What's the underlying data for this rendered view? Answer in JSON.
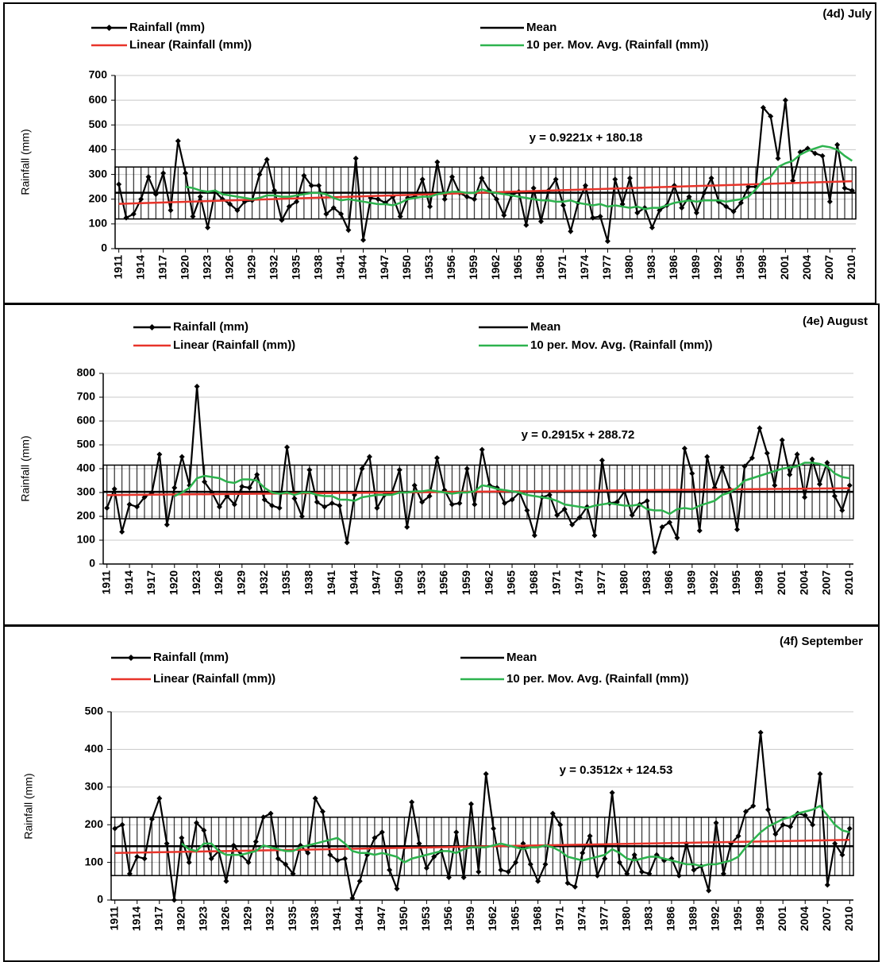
{
  "chart_data": [
    {
      "type": "line",
      "title": "(4d) July",
      "ylabel": "Rainfall (mm)",
      "annotation": "y = 0.9221x + 180.18",
      "x": [
        1911,
        1912,
        1913,
        1914,
        1915,
        1916,
        1917,
        1918,
        1919,
        1920,
        1921,
        1922,
        1923,
        1924,
        1925,
        1926,
        1927,
        1928,
        1929,
        1930,
        1931,
        1932,
        1933,
        1934,
        1935,
        1936,
        1937,
        1938,
        1939,
        1940,
        1941,
        1942,
        1943,
        1944,
        1945,
        1946,
        1947,
        1948,
        1949,
        1950,
        1951,
        1952,
        1953,
        1954,
        1955,
        1956,
        1957,
        1958,
        1959,
        1960,
        1961,
        1962,
        1963,
        1964,
        1965,
        1966,
        1967,
        1968,
        1969,
        1970,
        1971,
        1972,
        1973,
        1974,
        1975,
        1976,
        1977,
        1978,
        1979,
        1980,
        1981,
        1982,
        1983,
        1984,
        1985,
        1986,
        1987,
        1988,
        1989,
        1990,
        1991,
        1992,
        1993,
        1994,
        1995,
        1996,
        1997,
        1998,
        1999,
        2000,
        2001,
        2002,
        2003,
        2004,
        2005,
        2006,
        2007,
        2008,
        2009,
        2010
      ],
      "xlim": [
        1910.5,
        2010.5
      ],
      "xticks": [
        1911,
        1914,
        1917,
        1920,
        1923,
        1926,
        1929,
        1932,
        1935,
        1938,
        1941,
        1944,
        1947,
        1950,
        1953,
        1956,
        1959,
        1962,
        1965,
        1968,
        1971,
        1974,
        1977,
        1980,
        1983,
        1986,
        1989,
        1992,
        1995,
        1998,
        2001,
        2004,
        2007,
        2010
      ],
      "ylim": [
        0,
        700
      ],
      "yticks": [
        0,
        100,
        200,
        300,
        400,
        500,
        600,
        700
      ],
      "grid": true,
      "shaded_range": [
        120,
        330
      ],
      "series": [
        {
          "name": "Rainfall (mm)",
          "color": "#000000",
          "marker": "diamond",
          "values": [
            260,
            125,
            140,
            200,
            290,
            220,
            305,
            155,
            435,
            305,
            130,
            210,
            85,
            230,
            200,
            180,
            155,
            190,
            195,
            300,
            360,
            235,
            115,
            170,
            190,
            295,
            255,
            255,
            140,
            165,
            140,
            75,
            365,
            35,
            205,
            200,
            185,
            210,
            130,
            205,
            210,
            280,
            170,
            350,
            200,
            290,
            225,
            210,
            200,
            285,
            235,
            200,
            135,
            215,
            230,
            95,
            245,
            110,
            235,
            280,
            175,
            70,
            185,
            255,
            125,
            130,
            30,
            280,
            180,
            285,
            145,
            165,
            85,
            155,
            175,
            255,
            165,
            210,
            145,
            225,
            285,
            190,
            170,
            150,
            185,
            250,
            250,
            570,
            535,
            365,
            600,
            275,
            390,
            405,
            385,
            375,
            190,
            420,
            245,
            235
          ]
        },
        {
          "name": "Mean",
          "color": "#000000",
          "x": [
            1910.5,
            2010.5
          ],
          "values": [
            226,
            226
          ]
        },
        {
          "name": "Linear (Rainfall (mm))",
          "color": "#e8342a",
          "x": [
            1911,
            2010
          ],
          "values": [
            181.1,
            272.4
          ]
        },
        {
          "name": "10 per. Mov. Avg. (Rainfall (mm))",
          "color": "#2db34e",
          "values": [
            null,
            null,
            null,
            null,
            null,
            null,
            null,
            null,
            null,
            250,
            245,
            235,
            230,
            235,
            220,
            215,
            210,
            205,
            200,
            205,
            215,
            215,
            210,
            210,
            215,
            220,
            225,
            225,
            220,
            205,
            195,
            200,
            195,
            190,
            185,
            180,
            180,
            175,
            185,
            200,
            205,
            210,
            210,
            220,
            225,
            230,
            230,
            225,
            225,
            240,
            230,
            225,
            220,
            215,
            210,
            205,
            200,
            195,
            195,
            190,
            190,
            195,
            185,
            180,
            175,
            180,
            170,
            175,
            170,
            165,
            170,
            160,
            165,
            165,
            175,
            185,
            190,
            195,
            190,
            195,
            195,
            195,
            190,
            195,
            200,
            210,
            240,
            275,
            290,
            330,
            345,
            355,
            380,
            395,
            405,
            415,
            410,
            400,
            375,
            355
          ]
        }
      ]
    },
    {
      "type": "line",
      "title": "(4e) August",
      "ylabel": "Rainfall (mm)",
      "annotation": "y = 0.2915x + 288.72",
      "x": [
        1911,
        1912,
        1913,
        1914,
        1915,
        1916,
        1917,
        1918,
        1919,
        1920,
        1921,
        1922,
        1923,
        1924,
        1925,
        1926,
        1927,
        1928,
        1929,
        1930,
        1931,
        1932,
        1933,
        1934,
        1935,
        1936,
        1937,
        1938,
        1939,
        1940,
        1941,
        1942,
        1943,
        1944,
        1945,
        1946,
        1947,
        1948,
        1949,
        1950,
        1951,
        1952,
        1953,
        1954,
        1955,
        1956,
        1957,
        1958,
        1959,
        1960,
        1961,
        1962,
        1963,
        1964,
        1965,
        1966,
        1967,
        1968,
        1969,
        1970,
        1971,
        1972,
        1973,
        1974,
        1975,
        1976,
        1977,
        1978,
        1979,
        1980,
        1981,
        1982,
        1983,
        1984,
        1985,
        1986,
        1987,
        1988,
        1989,
        1990,
        1991,
        1992,
        1993,
        1994,
        1995,
        1996,
        1997,
        1998,
        1999,
        2000,
        2001,
        2002,
        2003,
        2004,
        2005,
        2006,
        2007,
        2008,
        2009,
        2010
      ],
      "xlim": [
        1910.5,
        2010.5
      ],
      "xticks": [
        1911,
        1914,
        1917,
        1920,
        1923,
        1926,
        1929,
        1932,
        1935,
        1938,
        1941,
        1944,
        1947,
        1950,
        1953,
        1956,
        1959,
        1962,
        1965,
        1968,
        1971,
        1974,
        1977,
        1980,
        1983,
        1986,
        1989,
        1992,
        1995,
        1998,
        2001,
        2004,
        2007,
        2010
      ],
      "ylim": [
        0,
        800
      ],
      "yticks": [
        0,
        100,
        200,
        300,
        400,
        500,
        600,
        700,
        800
      ],
      "grid": true,
      "shaded_range": [
        190,
        415
      ],
      "series": [
        {
          "name": "Rainfall (mm)",
          "color": "#000000",
          "marker": "diamond",
          "values": [
            235,
            315,
            135,
            250,
            240,
            280,
            300,
            460,
            165,
            320,
            450,
            330,
            745,
            345,
            300,
            240,
            285,
            250,
            325,
            320,
            375,
            270,
            245,
            235,
            490,
            275,
            200,
            395,
            260,
            240,
            255,
            245,
            90,
            290,
            400,
            450,
            235,
            290,
            300,
            395,
            155,
            330,
            260,
            285,
            445,
            310,
            250,
            255,
            400,
            250,
            480,
            330,
            320,
            255,
            270,
            300,
            225,
            120,
            280,
            290,
            205,
            230,
            165,
            195,
            240,
            120,
            435,
            255,
            260,
            305,
            205,
            250,
            265,
            50,
            155,
            175,
            110,
            485,
            380,
            140,
            450,
            320,
            405,
            315,
            145,
            410,
            445,
            570,
            465,
            330,
            520,
            375,
            460,
            280,
            440,
            335,
            425,
            285,
            225,
            330
          ]
        },
        {
          "name": "Mean",
          "color": "#000000",
          "x": [
            1910.5,
            2010.5
          ],
          "values": [
            303,
            303
          ]
        },
        {
          "name": "Linear (Rainfall (mm))",
          "color": "#e8342a",
          "x": [
            1911,
            2010
          ],
          "values": [
            289.0,
            317.9
          ]
        },
        {
          "name": "10 per. Mov. Avg. (Rainfall (mm))",
          "color": "#2db34e",
          "values": [
            null,
            null,
            null,
            null,
            null,
            null,
            null,
            null,
            null,
            285,
            300,
            320,
            360,
            370,
            365,
            360,
            345,
            340,
            355,
            355,
            350,
            320,
            300,
            295,
            300,
            290,
            300,
            300,
            290,
            285,
            285,
            270,
            270,
            265,
            280,
            285,
            290,
            290,
            290,
            300,
            300,
            305,
            305,
            310,
            305,
            300,
            295,
            300,
            300,
            305,
            330,
            325,
            315,
            310,
            305,
            300,
            290,
            285,
            280,
            275,
            265,
            250,
            245,
            240,
            235,
            245,
            250,
            255,
            250,
            245,
            245,
            250,
            230,
            225,
            225,
            210,
            230,
            235,
            230,
            245,
            255,
            265,
            290,
            300,
            320,
            350,
            360,
            370,
            380,
            390,
            400,
            405,
            410,
            425,
            425,
            420,
            410,
            380,
            365,
            360
          ]
        }
      ]
    },
    {
      "type": "line",
      "title": "(4f) September",
      "ylabel": "Rainfall (mm)",
      "annotation": "y = 0.3512x + 124.53",
      "x": [
        1911,
        1912,
        1913,
        1914,
        1915,
        1916,
        1917,
        1918,
        1919,
        1920,
        1921,
        1922,
        1923,
        1924,
        1925,
        1926,
        1927,
        1928,
        1929,
        1930,
        1931,
        1932,
        1933,
        1934,
        1935,
        1936,
        1937,
        1938,
        1939,
        1940,
        1941,
        1942,
        1943,
        1944,
        1945,
        1946,
        1947,
        1948,
        1949,
        1950,
        1951,
        1952,
        1953,
        1954,
        1955,
        1956,
        1957,
        1958,
        1959,
        1960,
        1961,
        1962,
        1963,
        1964,
        1965,
        1966,
        1967,
        1968,
        1969,
        1970,
        1971,
        1972,
        1973,
        1974,
        1975,
        1976,
        1977,
        1978,
        1979,
        1980,
        1981,
        1982,
        1983,
        1984,
        1985,
        1986,
        1987,
        1988,
        1989,
        1990,
        1991,
        1992,
        1993,
        1994,
        1995,
        1996,
        1997,
        1998,
        1999,
        2000,
        2001,
        2002,
        2003,
        2004,
        2005,
        2006,
        2007,
        2008,
        2009,
        2010
      ],
      "xlim": [
        1910.5,
        2010.5
      ],
      "xticks": [
        1911,
        1914,
        1917,
        1920,
        1923,
        1926,
        1929,
        1932,
        1935,
        1938,
        1941,
        1944,
        1947,
        1950,
        1953,
        1956,
        1959,
        1962,
        1965,
        1968,
        1971,
        1974,
        1977,
        1980,
        1983,
        1986,
        1989,
        1992,
        1995,
        1998,
        2001,
        2004,
        2007,
        2010
      ],
      "ylim": [
        0,
        500
      ],
      "yticks": [
        0,
        100,
        200,
        300,
        400,
        500
      ],
      "grid": true,
      "shaded_range": [
        65,
        220
      ],
      "series": [
        {
          "name": "Rainfall (mm)",
          "color": "#000000",
          "marker": "diamond",
          "values": [
            190,
            200,
            70,
            115,
            110,
            215,
            270,
            150,
            0,
            165,
            100,
            205,
            185,
            110,
            130,
            50,
            145,
            120,
            100,
            155,
            220,
            230,
            110,
            95,
            70,
            145,
            125,
            270,
            235,
            120,
            105,
            110,
            5,
            50,
            120,
            165,
            180,
            80,
            30,
            140,
            260,
            150,
            85,
            115,
            130,
            60,
            180,
            60,
            255,
            75,
            335,
            190,
            80,
            75,
            100,
            150,
            95,
            50,
            95,
            230,
            200,
            45,
            35,
            125,
            170,
            65,
            110,
            285,
            100,
            70,
            120,
            75,
            70,
            120,
            105,
            110,
            65,
            150,
            80,
            90,
            25,
            205,
            70,
            150,
            170,
            235,
            250,
            445,
            240,
            175,
            200,
            195,
            230,
            225,
            200,
            335,
            40,
            150,
            120,
            190
          ]
        },
        {
          "name": "Mean",
          "color": "#000000",
          "x": [
            1910.5,
            2010.5
          ],
          "values": [
            143,
            143
          ]
        },
        {
          "name": "Linear (Rainfall (mm))",
          "color": "#e8342a",
          "x": [
            1911,
            2010
          ],
          "values": [
            124.9,
            159.7
          ]
        },
        {
          "name": "10 per. Mov. Avg. (Rainfall (mm))",
          "color": "#2db34e",
          "values": [
            null,
            null,
            null,
            null,
            null,
            null,
            null,
            null,
            null,
            150,
            135,
            130,
            150,
            150,
            130,
            120,
            120,
            120,
            125,
            130,
            145,
            140,
            135,
            130,
            130,
            140,
            145,
            150,
            155,
            160,
            165,
            150,
            130,
            125,
            125,
            120,
            125,
            120,
            115,
            100,
            110,
            115,
            120,
            125,
            130,
            130,
            125,
            135,
            140,
            140,
            140,
            145,
            150,
            145,
            140,
            135,
            140,
            140,
            145,
            140,
            130,
            115,
            110,
            105,
            110,
            115,
            120,
            135,
            125,
            110,
            105,
            110,
            115,
            115,
            110,
            105,
            100,
            95,
            95,
            90,
            95,
            95,
            100,
            105,
            115,
            140,
            160,
            180,
            195,
            205,
            215,
            220,
            230,
            235,
            240,
            250,
            225,
            200,
            185,
            180
          ]
        }
      ]
    }
  ]
}
